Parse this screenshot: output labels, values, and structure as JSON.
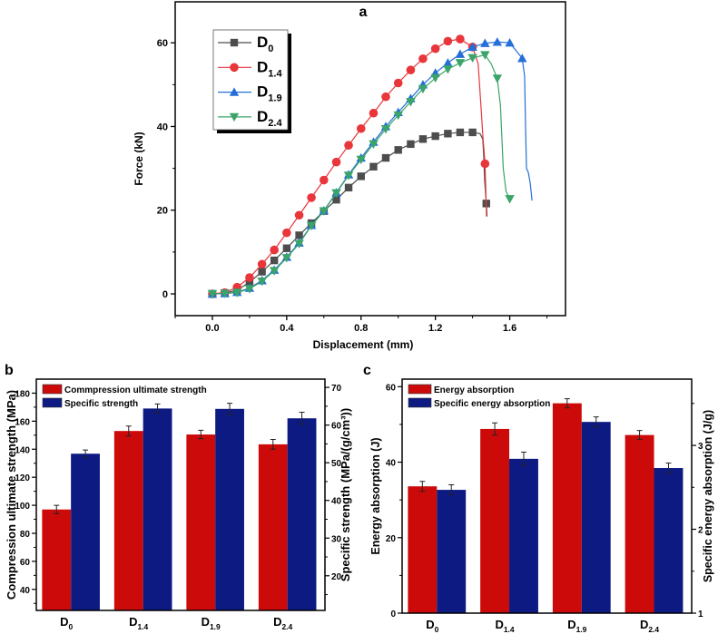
{
  "chart_data": [
    {
      "panel_label": "a",
      "type": "line",
      "xlabel": "Displacement (mm)",
      "ylabel": "Force (kN)",
      "xlim": [
        -0.2,
        1.9
      ],
      "ylim": [
        -5.2,
        69.8
      ],
      "xticks": [
        0.0,
        0.4,
        0.8,
        1.2,
        1.6
      ],
      "yticks": [
        0,
        20,
        40,
        60
      ],
      "grid": false,
      "legend_position": "top-left",
      "series": [
        {
          "name": "D0",
          "marker": "square",
          "color": "#4d4d4d",
          "x": [
            0,
            0.067,
            0.133,
            0.2,
            0.267,
            0.333,
            0.4,
            0.467,
            0.533,
            0.6,
            0.667,
            0.733,
            0.8,
            0.867,
            0.933,
            1.0,
            1.067,
            1.133,
            1.2,
            1.267,
            1.333,
            1.4,
            1.474
          ],
          "y": [
            0,
            0.2,
            0.9,
            2.8,
            5.3,
            8.0,
            10.9,
            14.0,
            16.9,
            19.8,
            22.5,
            25.4,
            28.1,
            30.4,
            32.5,
            34.4,
            35.8,
            37.0,
            37.7,
            38.3,
            38.6,
            38.6,
            21.6
          ],
          "curve_x": [
            1.4,
            1.44,
            1.455,
            1.46,
            1.465,
            1.474,
            1.478
          ],
          "curve_y": [
            38.6,
            38.3,
            37.0,
            33.0,
            27.0,
            21.6,
            18.5
          ]
        },
        {
          "name": "D1.4",
          "marker": "circle",
          "color": "#e8363a",
          "x": [
            0,
            0.067,
            0.133,
            0.2,
            0.267,
            0.333,
            0.4,
            0.467,
            0.533,
            0.6,
            0.667,
            0.733,
            0.8,
            0.867,
            0.933,
            1.0,
            1.067,
            1.133,
            1.2,
            1.267,
            1.333,
            1.4,
            1.467
          ],
          "y": [
            0,
            0.3,
            1.6,
            3.9,
            7.1,
            10.5,
            14.6,
            18.8,
            23.0,
            27.2,
            31.5,
            35.5,
            39.5,
            43.2,
            47.1,
            50.4,
            53.5,
            56.2,
            58.6,
            60.4,
            60.9,
            59.0,
            31.1
          ],
          "curve_x": [
            1.4,
            1.43,
            1.445,
            1.455,
            1.467,
            1.475
          ],
          "curve_y": [
            59.0,
            55.0,
            45.0,
            38.0,
            31.1,
            18.5
          ]
        },
        {
          "name": "D1.9",
          "marker": "triangle-up",
          "color": "#2470d8",
          "x": [
            0,
            0.067,
            0.133,
            0.2,
            0.267,
            0.333,
            0.4,
            0.467,
            0.533,
            0.6,
            0.667,
            0.733,
            0.8,
            0.867,
            0.933,
            1.0,
            1.067,
            1.133,
            1.2,
            1.267,
            1.333,
            1.4,
            1.467,
            1.533,
            1.6,
            1.667
          ],
          "y": [
            0,
            0.1,
            0.4,
            1.4,
            3.2,
            5.7,
            8.8,
            12.2,
            16.4,
            19.9,
            24.2,
            28.5,
            32.5,
            36.3,
            40.0,
            43.4,
            46.7,
            50.0,
            52.8,
            55.2,
            57.3,
            59.0,
            59.9,
            60.2,
            60.0,
            56.3
          ],
          "curve_x": [
            1.667,
            1.68,
            1.685,
            1.69,
            1.7,
            1.71,
            1.72
          ],
          "curve_y": [
            56.3,
            52.0,
            40.0,
            30.0,
            29.0,
            26.5,
            22.3
          ]
        },
        {
          "name": "D2.4",
          "marker": "triangle-down",
          "color": "#3aa46a",
          "x": [
            0,
            0.067,
            0.133,
            0.2,
            0.267,
            0.333,
            0.4,
            0.467,
            0.533,
            0.6,
            0.667,
            0.733,
            0.8,
            0.867,
            0.933,
            1.0,
            1.067,
            1.133,
            1.2,
            1.267,
            1.333,
            1.4,
            1.467,
            1.533,
            1.6
          ],
          "y": [
            0,
            0.1,
            0.3,
            1.2,
            3.0,
            5.5,
            8.6,
            12.0,
            16.3,
            19.8,
            24.1,
            28.3,
            32.1,
            35.8,
            39.4,
            42.7,
            45.9,
            49.0,
            51.6,
            53.7,
            55.2,
            56.4,
            57.1,
            51.5,
            22.7
          ],
          "curve_x": [
            1.467,
            1.5,
            1.533,
            1.55,
            1.565,
            1.58,
            1.6
          ],
          "curve_y": [
            57.1,
            55.0,
            51.5,
            45.0,
            30.0,
            24.5,
            22.7
          ]
        }
      ]
    },
    {
      "panel_label": "b",
      "type": "bar",
      "categories": [
        "D0",
        "D1.4",
        "D1.9",
        "D2.4"
      ],
      "ylabel": "Compression ultimate strength (MPa)",
      "y2label": "Specific strength (MPa/(g/cm³))",
      "ylim": [
        25,
        190
      ],
      "y2lim": [
        10.8,
        72.2
      ],
      "yticks": [
        40,
        60,
        80,
        100,
        120,
        140,
        160,
        180
      ],
      "y2ticks": [
        20,
        30,
        40,
        50,
        60,
        70
      ],
      "legend_position": "top-left",
      "series": [
        {
          "name": "Commpression ultimate strength",
          "axis": "left",
          "color": "#cc0a0a",
          "values": [
            97,
            153,
            150.5,
            143.5
          ],
          "errors": [
            3,
            3.5,
            3,
            3.5
          ]
        },
        {
          "name": "Specific strength",
          "axis": "right",
          "color": "#0d1a82",
          "values": [
            52.4,
            64.4,
            64.3,
            61.8
          ],
          "errors": [
            1.0,
            1.2,
            1.5,
            1.6
          ]
        }
      ]
    },
    {
      "panel_label": "c",
      "type": "bar",
      "categories": [
        "D0",
        "D1.4",
        "D1.9",
        "D2.4"
      ],
      "ylabel": "Energy absorption (J)",
      "y2label": "Specific energy absorption (J/g)",
      "ylim": [
        0,
        62
      ],
      "y2lim": [
        1,
        3.79
      ],
      "yticks": [
        0,
        20,
        40,
        60
      ],
      "y2ticks": [
        1,
        2,
        3
      ],
      "legend_position": "top-left",
      "series": [
        {
          "name": "Energy absorption",
          "axis": "left",
          "color": "#cc0a0a",
          "values": [
            33.6,
            48.8,
            55.6,
            47.2
          ],
          "errors": [
            1.3,
            1.6,
            1.2,
            1.2
          ]
        },
        {
          "name": "Specific energy absorption",
          "axis": "right",
          "color": "#0d1a82",
          "values": [
            2.47,
            2.84,
            3.28,
            2.73
          ],
          "errors": [
            0.06,
            0.08,
            0.06,
            0.06
          ]
        }
      ]
    }
  ]
}
